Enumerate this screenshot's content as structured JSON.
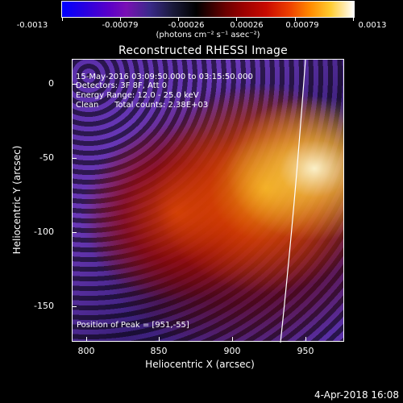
{
  "colorbar": {
    "ticks": [
      "-0.0013",
      "-0.00079",
      "-0.00026",
      "0.00026",
      "0.00079",
      "0.0013"
    ],
    "units": "(photons cm⁻² s⁻¹ asec⁻²)"
  },
  "title": "Reconstructed RHESSI Image",
  "annotations": {
    "time_range": "15-May-2016 03:09:50.000 to 03:15:50.000",
    "detectors": "Detectors: 3F 8F, Att 0",
    "energy": "Energy Range: 12.0 - 25.0 keV",
    "clean_label": "Clean",
    "total_counts": "Total counts: 2.38E+03",
    "peak": "Position of Peak = [951,-55]"
  },
  "axes": {
    "x_title": "Heliocentric X (arcsec)",
    "y_title": "Heliocentric Y (arcsec)",
    "x_ticks": [
      "800",
      "850",
      "900",
      "950"
    ],
    "y_ticks": [
      "0",
      "-50",
      "-100",
      "-150"
    ]
  },
  "footer": {
    "date": "4-Apr-2018 16:08"
  }
}
